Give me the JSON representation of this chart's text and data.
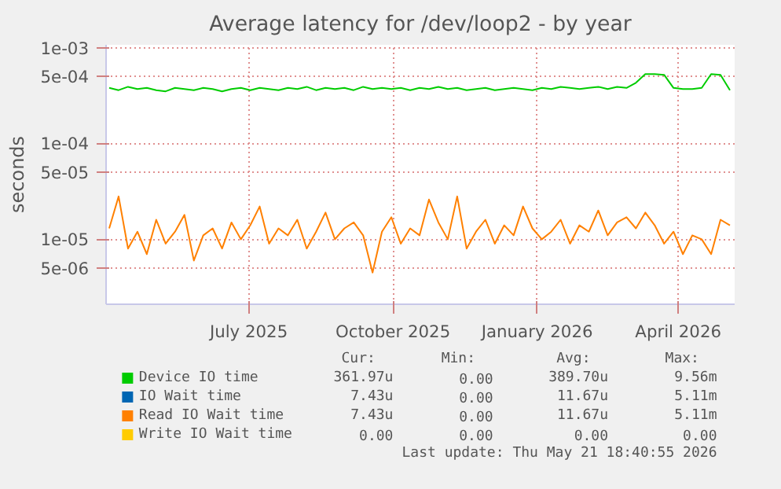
{
  "chart_data": {
    "type": "line",
    "title": "Average latency for /dev/loop2 - by year",
    "ylabel": "seconds",
    "x": [
      "2025-04-03",
      "2025-04-09",
      "2025-04-15",
      "2025-04-21",
      "2025-04-27",
      "2025-05-03",
      "2025-05-09",
      "2025-05-15",
      "2025-05-21",
      "2025-05-27",
      "2025-06-02",
      "2025-06-08",
      "2025-06-14",
      "2025-06-20",
      "2025-06-26",
      "2025-07-02",
      "2025-07-08",
      "2025-07-14",
      "2025-07-20",
      "2025-07-26",
      "2025-08-01",
      "2025-08-07",
      "2025-08-13",
      "2025-08-19",
      "2025-08-25",
      "2025-08-31",
      "2025-09-06",
      "2025-09-12",
      "2025-09-18",
      "2025-09-24",
      "2025-09-30",
      "2025-10-06",
      "2025-10-12",
      "2025-10-18",
      "2025-10-24",
      "2025-10-30",
      "2025-11-05",
      "2025-11-11",
      "2025-11-17",
      "2025-11-23",
      "2025-11-29",
      "2025-12-05",
      "2025-12-11",
      "2025-12-17",
      "2025-12-23",
      "2025-12-29",
      "2026-01-04",
      "2026-01-10",
      "2026-01-16",
      "2026-01-22",
      "2026-01-28",
      "2026-02-03",
      "2026-02-09",
      "2026-02-15",
      "2026-02-21",
      "2026-02-27",
      "2026-03-05",
      "2026-03-11",
      "2026-03-17",
      "2026-03-23",
      "2026-03-29",
      "2026-04-04",
      "2026-04-10",
      "2026-04-16",
      "2026-04-22",
      "2026-04-28",
      "2026-05-04"
    ],
    "series": [
      {
        "name": "Device IO time",
        "color": "#00cc00",
        "values": [
          0.00038,
          0.00036,
          0.00039,
          0.00037,
          0.00038,
          0.00036,
          0.00035,
          0.00038,
          0.00037,
          0.00036,
          0.00038,
          0.00037,
          0.00035,
          0.00037,
          0.00038,
          0.00036,
          0.00038,
          0.00037,
          0.00036,
          0.00038,
          0.00037,
          0.00039,
          0.00036,
          0.00038,
          0.00037,
          0.00038,
          0.00036,
          0.00039,
          0.00037,
          0.00038,
          0.00037,
          0.00038,
          0.00036,
          0.00038,
          0.00037,
          0.00039,
          0.00037,
          0.00038,
          0.00036,
          0.00037,
          0.00038,
          0.00036,
          0.00037,
          0.00038,
          0.00037,
          0.00036,
          0.00038,
          0.00037,
          0.00039,
          0.00038,
          0.00037,
          0.00038,
          0.00039,
          0.00037,
          0.00039,
          0.00038,
          0.00043,
          0.00053,
          0.00053,
          0.00052,
          0.00038,
          0.00037,
          0.00037,
          0.00038,
          0.00053,
          0.00052,
          0.00036
        ]
      },
      {
        "name": "IO Wait time",
        "color": "#0066b3",
        "values": [
          null,
          null,
          null,
          null,
          null,
          null,
          null,
          null,
          null,
          null,
          null,
          null,
          null,
          null,
          null,
          null,
          null,
          null,
          null,
          null,
          null,
          null,
          null,
          null,
          null,
          null,
          null,
          null,
          null,
          null,
          null,
          null,
          null,
          null,
          null,
          null,
          null,
          null,
          null,
          null,
          null,
          null,
          null,
          null,
          null,
          null,
          null,
          null,
          null,
          null,
          null,
          null,
          null,
          null,
          null,
          null,
          null,
          null,
          null,
          null,
          null,
          null,
          null,
          null,
          null,
          null,
          null
        ]
      },
      {
        "name": "Read IO Wait time",
        "color": "#ff8000",
        "values": [
          1.3e-05,
          2.8e-05,
          8e-06,
          1.2e-05,
          7e-06,
          1.6e-05,
          9e-06,
          1.2e-05,
          1.8e-05,
          6e-06,
          1.1e-05,
          1.3e-05,
          8e-06,
          1.5e-05,
          1e-05,
          1.4e-05,
          2.2e-05,
          9e-06,
          1.3e-05,
          1.1e-05,
          1.6e-05,
          8e-06,
          1.2e-05,
          1.9e-05,
          1e-05,
          1.3e-05,
          1.5e-05,
          1.1e-05,
          4.5e-06,
          1.2e-05,
          1.7e-05,
          9e-06,
          1.3e-05,
          1.1e-05,
          2.6e-05,
          1.5e-05,
          1e-05,
          2.8e-05,
          8e-06,
          1.2e-05,
          1.6e-05,
          9e-06,
          1.4e-05,
          1.1e-05,
          2.2e-05,
          1.3e-05,
          1e-05,
          1.2e-05,
          1.6e-05,
          9e-06,
          1.4e-05,
          1.2e-05,
          2e-05,
          1.1e-05,
          1.5e-05,
          1.7e-05,
          1.3e-05,
          1.9e-05,
          1.4e-05,
          9e-06,
          1.2e-05,
          7e-06,
          1.1e-05,
          1e-05,
          7e-06,
          1.6e-05,
          1.4e-05
        ]
      },
      {
        "name": "Write IO Wait time",
        "color": "#ffcc00",
        "values": [
          null,
          null,
          null,
          null,
          null,
          null,
          null,
          null,
          null,
          null,
          null,
          null,
          null,
          null,
          null,
          null,
          null,
          null,
          null,
          null,
          null,
          null,
          null,
          null,
          null,
          null,
          null,
          null,
          null,
          null,
          null,
          null,
          null,
          null,
          null,
          null,
          null,
          null,
          null,
          null,
          null,
          null,
          null,
          null,
          null,
          null,
          null,
          null,
          null,
          null,
          null,
          null,
          null,
          null,
          null,
          null,
          null,
          null,
          null,
          null,
          null,
          null,
          null,
          null,
          null,
          null,
          null
        ]
      }
    ],
    "log": true,
    "xlim": [
      "2025-04-01",
      "2026-05-07"
    ],
    "xticks": [
      {
        "value": "2025-07-01",
        "label": "July 2025"
      },
      {
        "value": "2025-10-01",
        "label": "October 2025"
      },
      {
        "value": "2026-01-01",
        "label": "January 2026"
      },
      {
        "value": "2026-04-01",
        "label": "April 2026"
      }
    ],
    "ylim": [
      2.1e-06,
      0.00107
    ],
    "yticks": [
      {
        "value": 5e-06,
        "label": "5e-06"
      },
      {
        "value": 1e-05,
        "label": "1e-05"
      },
      {
        "value": 5e-05,
        "label": "5e-05"
      },
      {
        "value": 0.0001,
        "label": "1e-04"
      },
      {
        "value": 0.0005,
        "label": "5e-04"
      },
      {
        "value": 0.001,
        "label": "1e-03"
      }
    ],
    "grid": true,
    "legend": "bottom",
    "annotations": [
      "Cur:",
      "Min:",
      "Avg:",
      "Max:",
      "361.97u",
      "0.00",
      "389.70u",
      "9.56m",
      "7.43u",
      "0.00",
      "11.67u",
      "5.11m",
      "7.43u",
      "0.00",
      "11.67u",
      "5.11m",
      "0.00",
      "0.00",
      "0.00",
      "0.00",
      "Last update: Thu May 21 18:40:55 2026"
    ]
  }
}
